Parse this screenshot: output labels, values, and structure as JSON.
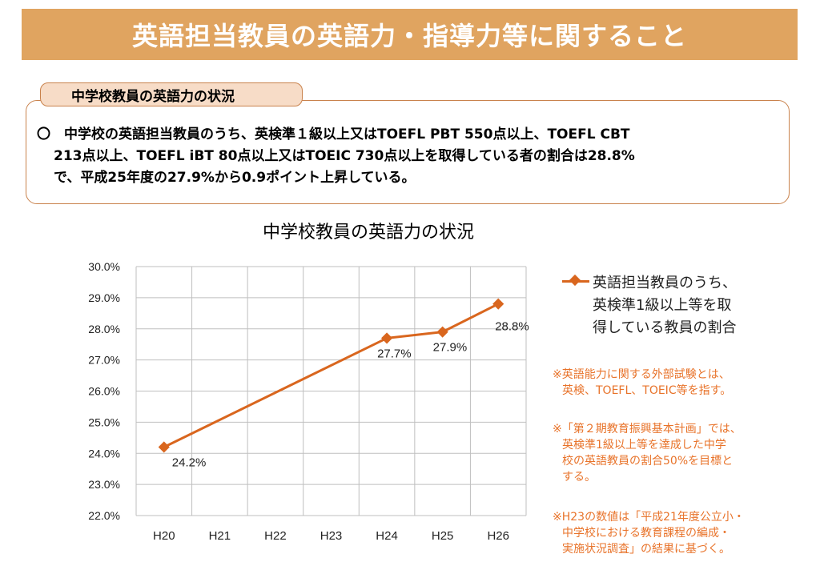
{
  "header": {
    "title": "英語担当教員の英語力・指導力等に関すること"
  },
  "summary": {
    "tab_label": "中学校教員の英語力の状況",
    "lines": [
      "〇　中学校の英語担当教員のうち、英検準１級以上又はTOEFL PBT 550点以上、TOEFL CBT",
      "213点以上、TOEFL iBT 80点以上又はTOEIC 730点以上を取得している者の割合は28.8%",
      "で、平成25年度の27.9%から0.9ポイント上昇している。"
    ]
  },
  "chart_data": {
    "type": "line",
    "title": "中学校教員の英語力の状況",
    "categories": [
      "H20",
      "H21",
      "H22",
      "H23",
      "H24",
      "H25",
      "H26"
    ],
    "series": [
      {
        "name": "英語担当教員のうち、英検準1級以上等を取得している教員の割合",
        "values": [
          24.2,
          null,
          null,
          null,
          27.7,
          27.9,
          28.8
        ],
        "data_labels": [
          "24.2%",
          null,
          null,
          null,
          "27.7%",
          "27.9%",
          "28.8%"
        ]
      }
    ],
    "y_ticks": [
      "22.0%",
      "23.0%",
      "24.0%",
      "25.0%",
      "26.0%",
      "27.0%",
      "28.0%",
      "29.0%",
      "30.0%"
    ],
    "ylim": [
      22,
      30
    ],
    "grid": true,
    "legend_position": "right",
    "legend_lines": [
      "英語担当教員のうち、",
      "英検準1級以上等を取",
      "得している教員の割合"
    ],
    "color": "#d9661e"
  },
  "notes": [
    {
      "lines": [
        "※英語能力に関する外部試験とは、",
        "英検、TOEFL、TOEIC等を指す。"
      ]
    },
    {
      "lines": [
        "※「第２期教育振興基本計画」では、",
        "英検準1級以上等を達成した中学",
        "校の英語教員の割合50%を目標と",
        "する。"
      ]
    },
    {
      "lines": [
        "※H23の数値は「平成21年度公立小・",
        "中学校における教育課程の編成・",
        "実施状況調査」の結果に基づく。"
      ]
    }
  ]
}
